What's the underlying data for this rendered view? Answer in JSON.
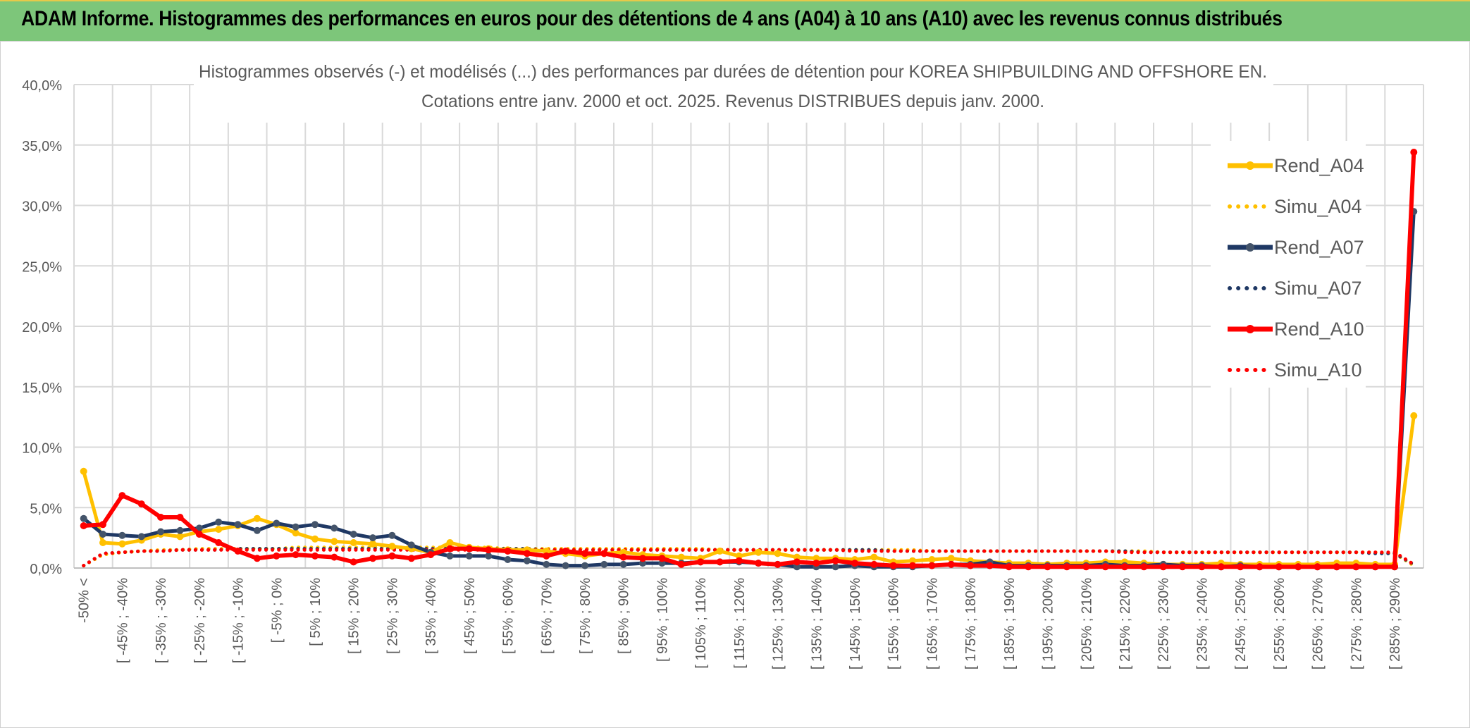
{
  "banner": {
    "title": "ADAM Informe. Histogrammes des performances en euros pour des détentions de 4 ans (A04) à 10 ans (A10) avec les revenus connus distribués"
  },
  "chart_data": {
    "type": "line",
    "title_line1": "Histogrammes observés (-) et modélisés (...) des performances par durées de détention pour KOREA SHIPBUILDING AND OFFSHORE EN.",
    "title_line2": "Cotations entre janv. 2000 et oct. 2025. Revenus DISTRIBUES depuis janv. 2000.",
    "ylim": [
      0,
      40
    ],
    "y_ticks": [
      "0,0%",
      "5,0%",
      "10,0%",
      "15,0%",
      "20,0%",
      "25,0%",
      "30,0%",
      "35,0%",
      "40,0%"
    ],
    "x_tick_labels": [
      "-50% <",
      "[ -45% ; -40%",
      "[ -35% ; -30%",
      "[ -25% ; -20%",
      "[ -15% ; -10%",
      "[ -5% ; 0%",
      "[ 5% ; 10%",
      "[ 15% ; 20%",
      "[ 25% ; 30%",
      "[ 35% ; 40%",
      "[ 45% ; 50%",
      "[ 55% ; 60%",
      "[ 65% ; 70%",
      "[ 75% ; 80%",
      "[ 85% ; 90%",
      "[ 95% ; 100%",
      "[ 105% ; 110%",
      "[ 115% ; 120%",
      "[ 125% ; 130%",
      "[ 135% ; 140%",
      "[ 145% ; 150%",
      "[ 155% ; 160%",
      "[ 165% ; 170%",
      "[ 175% ; 180%",
      "[ 185% ; 190%",
      "[ 195% ; 200%",
      "[ 205% ; 210%",
      "[ 215% ; 220%",
      "[ 225% ; 230%",
      "[ 235% ; 240%",
      "[ 245% ; 250%",
      "[ 255% ; 260%",
      "[ 265% ; 270%",
      "[ 275% ; 280%",
      "[ 285% ; 290%"
    ],
    "n_categories": 70,
    "grid": true,
    "legend_position": "right",
    "series": [
      {
        "name": "Rend_A04",
        "style": "solid",
        "color": "#ffc000",
        "values": [
          8.0,
          2.1,
          2.0,
          2.3,
          2.8,
          2.6,
          3.0,
          3.2,
          3.5,
          4.1,
          3.6,
          2.9,
          2.4,
          2.2,
          2.1,
          2.0,
          1.8,
          1.6,
          1.3,
          2.1,
          1.7,
          1.6,
          1.5,
          1.5,
          1.4,
          1.2,
          1.0,
          1.2,
          1.3,
          1.1,
          1.0,
          0.9,
          0.8,
          1.4,
          1.0,
          1.3,
          1.2,
          0.9,
          0.8,
          0.8,
          0.7,
          0.9,
          0.5,
          0.6,
          0.7,
          0.8,
          0.6,
          0.5,
          0.4,
          0.4,
          0.3,
          0.4,
          0.4,
          0.5,
          0.5,
          0.4,
          0.3,
          0.3,
          0.3,
          0.4,
          0.3,
          0.3,
          0.3,
          0.3,
          0.3,
          0.4,
          0.4,
          0.3,
          0.3,
          12.6
        ]
      },
      {
        "name": "Simu_A04",
        "style": "dotted",
        "color": "#ffc000",
        "values": [
          0.2,
          1.1,
          1.3,
          1.4,
          1.5,
          1.5,
          1.6,
          1.6,
          1.6,
          1.6,
          1.6,
          1.7,
          1.7,
          1.7,
          1.7,
          1.7,
          1.7,
          1.7,
          1.7,
          1.7,
          1.7,
          1.7,
          1.6,
          1.6,
          1.6,
          1.6,
          1.6,
          1.6,
          1.6,
          1.6,
          1.6,
          1.6,
          1.6,
          1.5,
          1.5,
          1.5,
          1.5,
          1.5,
          1.5,
          1.5,
          1.5,
          1.5,
          1.5,
          1.5,
          1.4,
          1.4,
          1.4,
          1.4,
          1.4,
          1.4,
          1.4,
          1.4,
          1.4,
          1.4,
          1.4,
          1.4,
          1.3,
          1.3,
          1.3,
          1.3,
          1.3,
          1.3,
          1.3,
          1.3,
          1.3,
          1.3,
          1.3,
          1.3,
          1.2,
          0.2
        ]
      },
      {
        "name": "Rend_A07",
        "style": "solid",
        "color": "#1f3864",
        "values": [
          4.1,
          2.8,
          2.7,
          2.6,
          3.0,
          3.1,
          3.3,
          3.8,
          3.6,
          3.1,
          3.7,
          3.4,
          3.6,
          3.3,
          2.8,
          2.5,
          2.7,
          1.9,
          1.3,
          1.0,
          1.0,
          1.0,
          0.7,
          0.6,
          0.3,
          0.2,
          0.2,
          0.3,
          0.3,
          0.4,
          0.4,
          0.4,
          0.5,
          0.5,
          0.5,
          0.4,
          0.3,
          0.1,
          0.1,
          0.1,
          0.2,
          0.1,
          0.1,
          0.1,
          0.2,
          0.3,
          0.3,
          0.5,
          0.2,
          0.2,
          0.2,
          0.2,
          0.2,
          0.3,
          0.2,
          0.2,
          0.3,
          0.2,
          0.2,
          0.1,
          0.2,
          0.1,
          0.1,
          0.1,
          0.1,
          0.1,
          0.1,
          0.1,
          0.1,
          29.5
        ]
      },
      {
        "name": "Simu_A07",
        "style": "dotted",
        "color": "#1f3864",
        "values": [
          0.2,
          1.2,
          1.3,
          1.4,
          1.4,
          1.5,
          1.5,
          1.5,
          1.6,
          1.6,
          1.6,
          1.6,
          1.6,
          1.6,
          1.6,
          1.6,
          1.6,
          1.6,
          1.6,
          1.6,
          1.6,
          1.6,
          1.6,
          1.6,
          1.5,
          1.5,
          1.5,
          1.5,
          1.5,
          1.5,
          1.5,
          1.5,
          1.5,
          1.5,
          1.5,
          1.5,
          1.5,
          1.5,
          1.5,
          1.5,
          1.5,
          1.5,
          1.4,
          1.4,
          1.4,
          1.4,
          1.4,
          1.4,
          1.4,
          1.4,
          1.4,
          1.4,
          1.4,
          1.4,
          1.4,
          1.3,
          1.3,
          1.3,
          1.3,
          1.3,
          1.3,
          1.3,
          1.3,
          1.3,
          1.3,
          1.3,
          1.3,
          1.2,
          1.2,
          0.3
        ]
      },
      {
        "name": "Rend_A10",
        "style": "solid",
        "color": "#ff0000",
        "values": [
          3.5,
          3.6,
          6.0,
          5.3,
          4.2,
          4.2,
          2.8,
          2.1,
          1.4,
          0.8,
          1.0,
          1.1,
          1.0,
          0.9,
          0.5,
          0.8,
          1.0,
          0.8,
          1.1,
          1.6,
          1.6,
          1.5,
          1.4,
          1.2,
          1.0,
          1.4,
          1.2,
          1.2,
          0.9,
          0.8,
          0.8,
          0.3,
          0.5,
          0.5,
          0.6,
          0.4,
          0.3,
          0.5,
          0.4,
          0.6,
          0.4,
          0.3,
          0.2,
          0.2,
          0.2,
          0.3,
          0.2,
          0.2,
          0.1,
          0.1,
          0.1,
          0.1,
          0.1,
          0.1,
          0.1,
          0.1,
          0.1,
          0.1,
          0.1,
          0.1,
          0.1,
          0.1,
          0.1,
          0.1,
          0.1,
          0.1,
          0.1,
          0.1,
          0.1,
          34.4
        ]
      },
      {
        "name": "Simu_A10",
        "style": "dotted",
        "color": "#ff0000",
        "values": [
          0.2,
          1.2,
          1.3,
          1.4,
          1.4,
          1.5,
          1.5,
          1.5,
          1.5,
          1.5,
          1.5,
          1.5,
          1.5,
          1.5,
          1.5,
          1.5,
          1.5,
          1.5,
          1.5,
          1.5,
          1.5,
          1.5,
          1.5,
          1.5,
          1.5,
          1.5,
          1.5,
          1.5,
          1.5,
          1.5,
          1.5,
          1.5,
          1.5,
          1.5,
          1.5,
          1.5,
          1.5,
          1.5,
          1.5,
          1.5,
          1.4,
          1.4,
          1.4,
          1.4,
          1.4,
          1.4,
          1.4,
          1.4,
          1.4,
          1.4,
          1.4,
          1.4,
          1.4,
          1.4,
          1.3,
          1.3,
          1.3,
          1.3,
          1.3,
          1.3,
          1.3,
          1.3,
          1.3,
          1.3,
          1.3,
          1.3,
          1.3,
          1.3,
          1.3,
          0.3
        ]
      }
    ]
  }
}
